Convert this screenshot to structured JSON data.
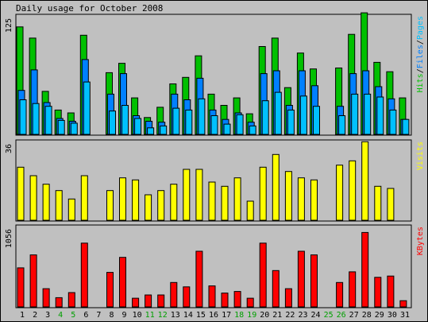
{
  "title": "Daily usage for October 2008",
  "colors": {
    "background": "#c0c0c0",
    "hits": "#00c000",
    "files": "#0080ff",
    "pages": "#00c0ff",
    "visits": "#ffff00",
    "kbytes": "#ff0000",
    "weekday_label": "#000000",
    "weekend_label": "#00a000"
  },
  "chart_data": [
    {
      "type": "bar",
      "categories": [
        "1",
        "2",
        "3",
        "4",
        "5",
        "6",
        "7",
        "8",
        "9",
        "10",
        "11",
        "12",
        "13",
        "14",
        "15",
        "16",
        "17",
        "18",
        "19",
        "20",
        "21",
        "22",
        "23",
        "24",
        "25",
        "26",
        "27",
        "28",
        "29",
        "30",
        "31"
      ],
      "weekend_days": [
        "4",
        "5",
        "11",
        "12",
        "18",
        "19",
        "25",
        "26"
      ],
      "ylabel_parts": [
        "Pages",
        "/",
        "Files",
        "/",
        "Hits"
      ],
      "ytick": "125",
      "ylim": [
        0,
        125
      ],
      "series": [
        {
          "name": "Hits",
          "values": [
            115,
            103,
            46,
            26,
            23,
            106,
            0,
            66,
            76,
            39,
            18,
            29,
            54,
            61,
            84,
            43,
            31,
            39,
            22,
            94,
            103,
            50,
            87,
            70,
            0,
            71,
            107,
            130,
            77,
            67,
            39
          ]
        },
        {
          "name": "Files",
          "values": [
            47,
            69,
            34,
            17,
            14,
            80,
            0,
            43,
            65,
            20,
            14,
            13,
            43,
            37,
            60,
            26,
            16,
            23,
            13,
            65,
            68,
            31,
            68,
            52,
            0,
            30,
            65,
            68,
            51,
            38,
            16
          ]
        },
        {
          "name": "Pages",
          "values": [
            37,
            33,
            30,
            15,
            12,
            56,
            0,
            25,
            31,
            17,
            7,
            9,
            28,
            26,
            38,
            20,
            11,
            21,
            9,
            36,
            45,
            26,
            41,
            30,
            0,
            20,
            43,
            43,
            40,
            26,
            16
          ]
        }
      ]
    },
    {
      "type": "bar",
      "categories": [
        "1",
        "2",
        "3",
        "4",
        "5",
        "6",
        "7",
        "8",
        "9",
        "10",
        "11",
        "12",
        "13",
        "14",
        "15",
        "16",
        "17",
        "18",
        "19",
        "20",
        "21",
        "22",
        "23",
        "24",
        "25",
        "26",
        "27",
        "28",
        "29",
        "30",
        "31"
      ],
      "ylabel": "Visits",
      "ytick": "36",
      "ylim": [
        0,
        36
      ],
      "series": [
        {
          "name": "Visits",
          "values": [
            25,
            21,
            17,
            14,
            10,
            21,
            0,
            14,
            20,
            19,
            12,
            14,
            17,
            24,
            24,
            18,
            16,
            20,
            9,
            25,
            31,
            23,
            20,
            19,
            0,
            26,
            28,
            37,
            16,
            15,
            0
          ]
        }
      ]
    },
    {
      "type": "bar",
      "categories": [
        "1",
        "2",
        "3",
        "4",
        "5",
        "6",
        "7",
        "8",
        "9",
        "10",
        "11",
        "12",
        "13",
        "14",
        "15",
        "16",
        "17",
        "18",
        "19",
        "20",
        "21",
        "22",
        "23",
        "24",
        "25",
        "26",
        "27",
        "28",
        "29",
        "30",
        "31"
      ],
      "ylabel": "KBytes",
      "ytick": "1056",
      "ylim": [
        0,
        1056
      ],
      "series": [
        {
          "name": "KBytes",
          "values": [
            518,
            691,
            242,
            123,
            190,
            847,
            0,
            458,
            658,
            115,
            158,
            158,
            324,
            266,
            739,
            279,
            184,
            205,
            115,
            847,
            483,
            242,
            739,
            691,
            0,
            324,
            466,
            988,
            393,
            410,
            82
          ]
        }
      ]
    }
  ]
}
